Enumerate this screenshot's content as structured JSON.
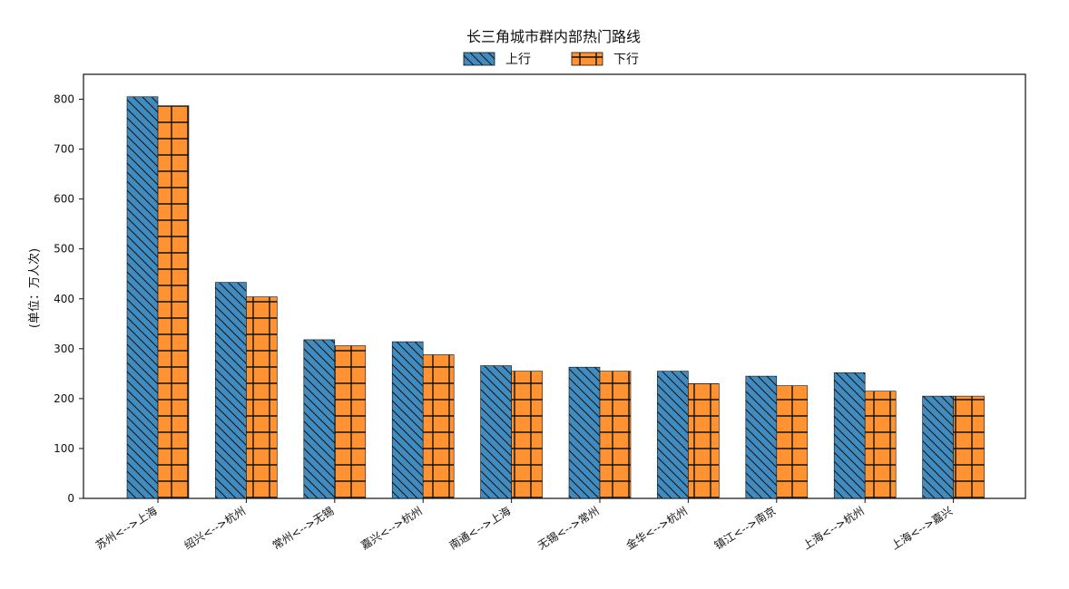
{
  "chart_data": {
    "type": "bar",
    "title": "长三角城市群内部热门路线",
    "xlabel": "",
    "ylabel": "(单位：万人次)",
    "ylim": [
      0,
      850
    ],
    "yticks": [
      0,
      100,
      200,
      300,
      400,
      500,
      600,
      700,
      800
    ],
    "categories": [
      "苏州<-->上海",
      "绍兴<-->杭州",
      "常州<-->无锡",
      "嘉兴<-->杭州",
      "南通<-->上海",
      "无锡<-->常州",
      "金华<-->杭州",
      "镇江<-->南京",
      "上海<-->杭州",
      "上海<-->嘉兴"
    ],
    "series": [
      {
        "name": "上行",
        "values": [
          805,
          433,
          318,
          314,
          266,
          263,
          255,
          245,
          252,
          205
        ],
        "color": "#1f77b4",
        "pattern": "diagonal-backslash"
      },
      {
        "name": "下行",
        "values": [
          787,
          404,
          306,
          288,
          255,
          255,
          230,
          226,
          215,
          205
        ],
        "color": "#ff7f0e",
        "pattern": "grid-plus"
      }
    ],
    "legend_position": "top-center",
    "grid": false
  }
}
